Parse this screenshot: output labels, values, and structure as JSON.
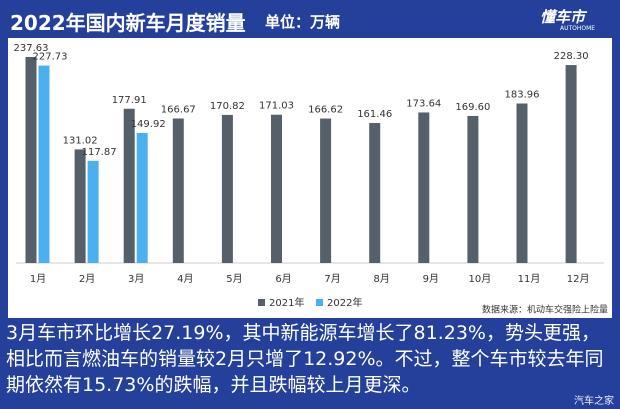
{
  "header": {
    "title": "2022年国内新车月度销量",
    "unit": "单位：万辆",
    "logo": "懂车市",
    "logo_sub": "AUTOHOME"
  },
  "chart_data": {
    "type": "bar",
    "categories": [
      "1月",
      "2月",
      "3月",
      "4月",
      "5月",
      "6月",
      "7月",
      "8月",
      "9月",
      "10月",
      "11月",
      "12月"
    ],
    "series": [
      {
        "name": "2021年",
        "color": "#56606b",
        "values": [
          237.63,
          131.02,
          177.91,
          166.67,
          170.82,
          171.03,
          166.62,
          161.46,
          173.64,
          169.6,
          183.96,
          228.3
        ],
        "value_labels": [
          "237.63",
          "131.02",
          "177.91",
          "166.67",
          "170.82",
          "171.03",
          "166.62",
          "161.46",
          "173.64",
          "169.60",
          "183.96",
          "228.30"
        ]
      },
      {
        "name": "2022年",
        "color": "#4db0ee",
        "values": [
          227.73,
          117.87,
          149.92,
          null,
          null,
          null,
          null,
          null,
          null,
          null,
          null,
          null
        ],
        "value_labels": [
          "227.73",
          "117.87",
          "149.92",
          null,
          null,
          null,
          null,
          null,
          null,
          null,
          null,
          null
        ]
      }
    ],
    "legend": "bottom",
    "source": "数据来源：机动车交强险上险量"
  },
  "caption": "3月车市环比增长27.19%，其中新能源车增长了81.23%，势头更强，相比而言燃油车的销量较2月只增了12.92%。不过，整个车市较去年同期依然有15.73%的跌幅，并且跌幅较上月更深。",
  "watermark": "汽车之家"
}
